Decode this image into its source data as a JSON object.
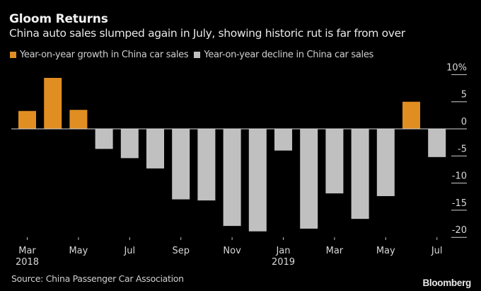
{
  "header": {
    "title": "Gloom Returns",
    "subtitle": "China auto sales slumped again in July, showing historic rut is far from over"
  },
  "legend": [
    {
      "label": "Year-on-year growth in China car sales",
      "color": "#e08e22"
    },
    {
      "label": "Year-on-year decline in China car sales",
      "color": "#c0c0c0"
    }
  ],
  "footer": {
    "source": "Source: China Passenger Car Association",
    "brand": "Bloomberg"
  },
  "chart_data": {
    "type": "bar",
    "title": "Gloom Returns",
    "subtitle": "China auto sales slumped again in July, showing historic rut is far from over",
    "xlabel": "",
    "ylabel": "",
    "categories": [
      "Mar 2018",
      "Apr 2018",
      "May 2018",
      "Jun 2018",
      "Jul 2018",
      "Aug 2018",
      "Sep 2018",
      "Oct 2018",
      "Nov 2018",
      "Dec 2018",
      "Jan 2019",
      "Feb 2019",
      "Mar 2019",
      "Apr 2019",
      "May 2019",
      "Jun 2019",
      "Jul 2019"
    ],
    "values": [
      3.3,
      9.4,
      3.5,
      -3.7,
      -5.4,
      -7.3,
      -13.0,
      -13.2,
      -17.9,
      -18.9,
      -4.0,
      -18.4,
      -11.9,
      -16.6,
      -12.4,
      5.0,
      -5.2
    ],
    "series": [
      {
        "name": "Year-on-year growth in China car sales",
        "color": "#e08e22",
        "rule": "value >= 0"
      },
      {
        "name": "Year-on-year decline in China car sales",
        "color": "#c0c0c0",
        "rule": "value < 0"
      }
    ],
    "ylim": [
      -21,
      10
    ],
    "yticks": [
      10,
      5,
      0,
      -5,
      -10,
      -15,
      -20
    ],
    "ytick_labels": [
      "10%",
      "5",
      "0",
      "-5",
      "-10",
      "-15",
      "-20"
    ],
    "y_axis_side": "right",
    "xtick_labels": [
      {
        "index": 0,
        "label": "Mar",
        "sublabel": "2018"
      },
      {
        "index": 2,
        "label": "May",
        "sublabel": ""
      },
      {
        "index": 4,
        "label": "Jul",
        "sublabel": ""
      },
      {
        "index": 6,
        "label": "Sep",
        "sublabel": ""
      },
      {
        "index": 8,
        "label": "Nov",
        "sublabel": ""
      },
      {
        "index": 10,
        "label": "Jan",
        "sublabel": "2019"
      },
      {
        "index": 12,
        "label": "Mar",
        "sublabel": ""
      },
      {
        "index": 14,
        "label": "May",
        "sublabel": ""
      },
      {
        "index": 16,
        "label": "Jul",
        "sublabel": ""
      }
    ],
    "grid": false,
    "legend_position": "top-left"
  }
}
